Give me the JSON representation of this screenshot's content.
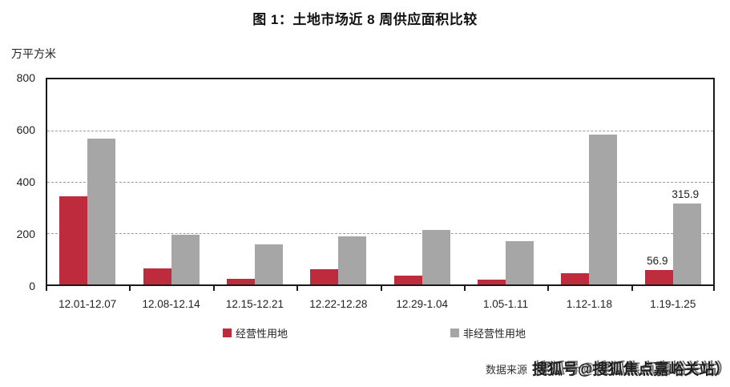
{
  "title": "图 1：土地市场近 8 周供应面积比较",
  "y_axis_unit": "万平方米",
  "chart_data": {
    "type": "bar",
    "categories": [
      "12.01-12.07",
      "12.08-12.14",
      "12.15-12.21",
      "12.22-12.28",
      "12.29-1.04",
      "1.05-1.11",
      "1.12-1.18",
      "1.19-1.25"
    ],
    "series": [
      {
        "name": "经营性用地",
        "color": "#be2b3d",
        "values": [
          345,
          64,
          23,
          59,
          33,
          18,
          43,
          56.9
        ]
      },
      {
        "name": "非经营性用地",
        "color": "#a6a6a6",
        "values": [
          568,
          193,
          155,
          188,
          213,
          169,
          585,
          315.9
        ]
      }
    ],
    "title": "图 1：土地市场近 8 周供应面积比较",
    "xlabel": "",
    "ylabel": "万平方米",
    "ylim": [
      0,
      800
    ],
    "yticks": [
      0,
      200,
      400,
      600,
      800
    ],
    "grid": "horizontal-dashed",
    "legend_position": "bottom",
    "data_labels": [
      {
        "series": 0,
        "index": 7,
        "text": "56.9"
      },
      {
        "series": 1,
        "index": 7,
        "text": "315.9"
      }
    ]
  },
  "legend": {
    "items": [
      {
        "label": "经营性用地",
        "color": "#be2b3d"
      },
      {
        "label": "非经营性用地",
        "color": "#a6a6a6"
      }
    ]
  },
  "source": {
    "prefix": "数据来源",
    "watermark": "搜狐号@搜狐焦点嘉峪关站）"
  }
}
